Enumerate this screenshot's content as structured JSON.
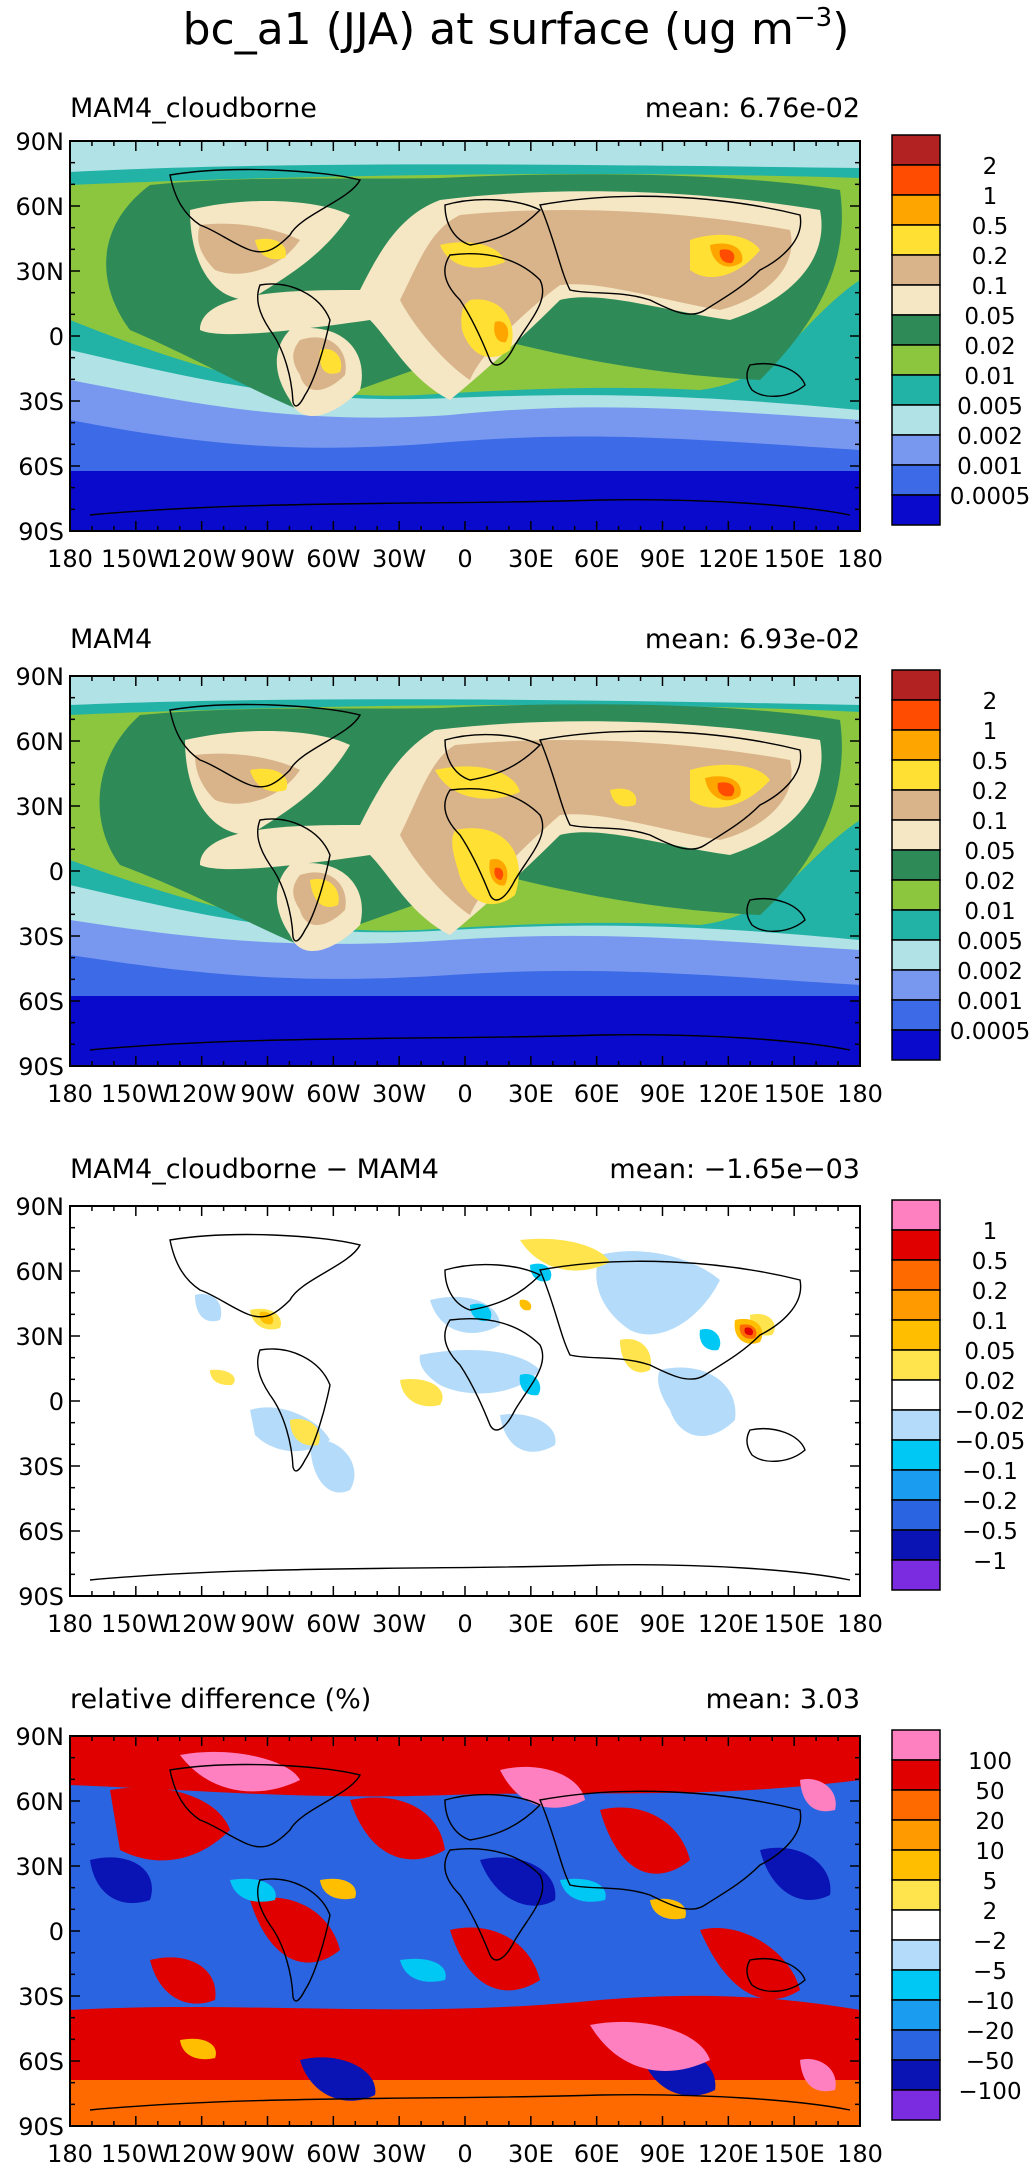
{
  "title": {
    "main": "bc_a1 (JJA) at surface (ug m",
    "sup": "−3",
    "close": ")"
  },
  "axes": {
    "lat_labels": [
      "90N",
      "60N",
      "30N",
      "0",
      "30S",
      "60S",
      "90S"
    ],
    "lon_labels": [
      "180",
      "150W",
      "120W",
      "90W",
      "60W",
      "30W",
      "0",
      "30E",
      "60E",
      "90E",
      "120E",
      "150E",
      "180"
    ]
  },
  "colors": {
    "abs": [
      "#0a0acc",
      "#3d6ae6",
      "#7898f0",
      "#b0e2e6",
      "#23b2a6",
      "#8cc63f",
      "#2e8b57",
      "#f5e6c4",
      "#d9b48a",
      "#ffe033",
      "#ffa500",
      "#ff4c00",
      "#b22222"
    ],
    "diff": [
      "#7b2be0",
      "#0a14b4",
      "#2b64e0",
      "#1a9cf0",
      "#00c8f5",
      "#b4dcfa",
      "#ffffff",
      "#ffe44d",
      "#ffbf00",
      "#ff9a00",
      "#ff6a00",
      "#e00000",
      "#ff80c0"
    ]
  },
  "panels": [
    {
      "label": "MAM4_cloudborne",
      "mean": "mean: 6.76e-02",
      "colorbar": [
        "2",
        "1",
        "0.5",
        "0.2",
        "0.1",
        "0.05",
        "0.02",
        "0.01",
        "0.005",
        "0.002",
        "0.001",
        "0.0005"
      ]
    },
    {
      "label": "MAM4",
      "mean": "mean: 6.93e-02",
      "colorbar": [
        "2",
        "1",
        "0.5",
        "0.2",
        "0.1",
        "0.05",
        "0.02",
        "0.01",
        "0.005",
        "0.002",
        "0.001",
        "0.0005"
      ]
    },
    {
      "label": "MAM4_cloudborne − MAM4",
      "mean": "mean: −1.65e−03",
      "colorbar": [
        "1",
        "0.5",
        "0.2",
        "0.1",
        "0.05",
        "0.02",
        "−0.02",
        "−0.05",
        "−0.1",
        "−0.2",
        "−0.5",
        "−1"
      ]
    },
    {
      "label": "relative difference (%)",
      "mean": "mean:  3.03",
      "colorbar": [
        "100",
        "50",
        "20",
        "10",
        "5",
        "2",
        "−2",
        "−5",
        "−10",
        "−20",
        "−50",
        "−100"
      ]
    }
  ]
}
